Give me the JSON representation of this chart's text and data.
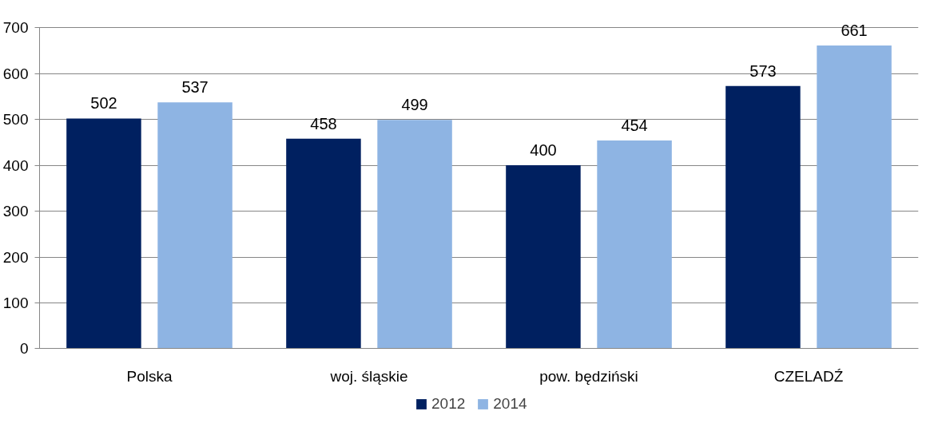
{
  "chart_data": {
    "type": "bar",
    "categories": [
      "Polska",
      "woj. śląskie",
      "pow. będziński",
      "CZELADŹ"
    ],
    "series": [
      {
        "name": "2012",
        "color": "#002060",
        "values": [
          502,
          458,
          400,
          573
        ]
      },
      {
        "name": "2014",
        "color": "#8eb4e3",
        "values": [
          537,
          499,
          454,
          661
        ]
      }
    ],
    "ylim": [
      0,
      700
    ],
    "yticks": [
      0,
      100,
      200,
      300,
      400,
      500,
      600,
      700
    ],
    "grid": "y",
    "legend": "bottom",
    "data_labels": true
  }
}
